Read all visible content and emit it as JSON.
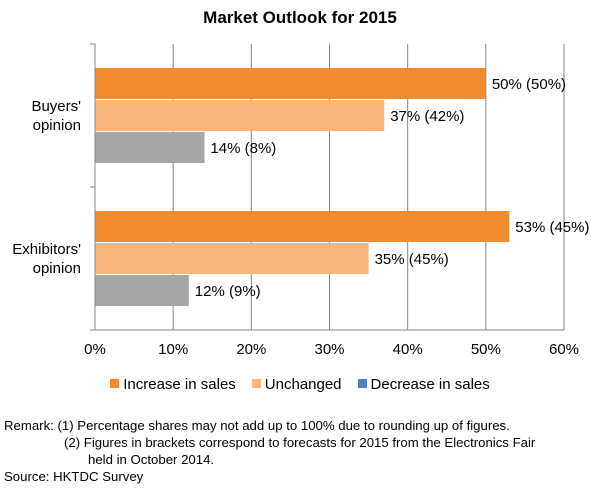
{
  "chart_data": {
    "type": "bar",
    "orientation": "horizontal",
    "title": "Market Outlook for 2015",
    "categories": [
      "Buyers' opinion",
      "Exhibitors' opinion"
    ],
    "category_lines": [
      [
        "Buyers'",
        "opinion"
      ],
      [
        "Exhibitors'",
        "opinion"
      ]
    ],
    "series": [
      {
        "name": "Increase in sales",
        "color": "#F28A30",
        "values": [
          50,
          53
        ],
        "labels": [
          "50% (50%)",
          "53% (45%)"
        ]
      },
      {
        "name": "Unchanged",
        "color": "#F9B67A",
        "values": [
          37,
          35
        ],
        "labels": [
          "37% (42%)",
          "35% (45%)"
        ]
      },
      {
        "name": "Decrease in sales",
        "color": "#A6A6A6",
        "legend_color": "#4F81BD",
        "values": [
          14,
          12
        ],
        "labels": [
          "14% (8%)",
          "12% (9%)"
        ]
      }
    ],
    "xlim": [
      0,
      60
    ],
    "xticks": [
      0,
      10,
      20,
      30,
      40,
      50,
      60
    ],
    "xtick_labels": [
      "0%",
      "10%",
      "20%",
      "30%",
      "40%",
      "50%",
      "60%"
    ],
    "grid": true,
    "legend": "bottom"
  },
  "notes": {
    "remark1": "Remark: (1) Percentage shares may not add up to 100% due to rounding up of figures.",
    "remark2a": "(2) Figures in brackets correspond to forecasts for 2015 from the Electronics Fair",
    "remark2b": "held in October 2014.",
    "source": "Source: HKTDC Survey"
  }
}
